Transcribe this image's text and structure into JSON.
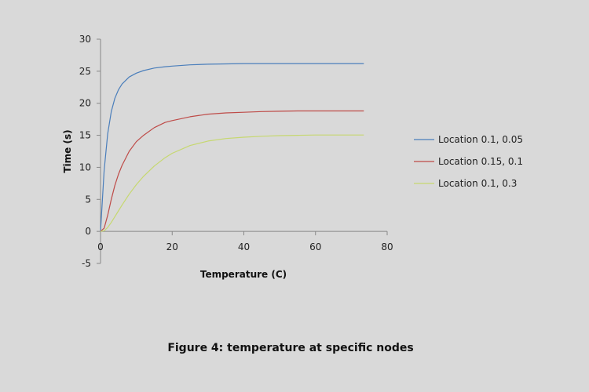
{
  "caption": "Figure 4: temperature at specific nodes",
  "chart_data": {
    "type": "line",
    "title": "",
    "xlabel": "Temperature (C)",
    "ylabel": "Time (s)",
    "xlim": [
      0,
      80
    ],
    "ylim": [
      -5,
      30
    ],
    "xticks": [
      0,
      20,
      40,
      60,
      80
    ],
    "yticks": [
      -5,
      0,
      5,
      10,
      15,
      20,
      25,
      30
    ],
    "grid": false,
    "legend_position": "right",
    "x": [
      0,
      1,
      2,
      3,
      4,
      5,
      6,
      8,
      10,
      12,
      15,
      18,
      20,
      25,
      30,
      35,
      40,
      45,
      50,
      55,
      60,
      65,
      70,
      73.5
    ],
    "series": [
      {
        "name": "Location 0.1, 0.05",
        "color": "#4a7ebb",
        "values": [
          0,
          9.5,
          15.2,
          18.7,
          20.8,
          22.1,
          23.0,
          24.1,
          24.7,
          25.1,
          25.5,
          25.7,
          25.8,
          26.0,
          26.1,
          26.15,
          26.2,
          26.2,
          26.2,
          26.2,
          26.2,
          26.2,
          26.2,
          26.2
        ]
      },
      {
        "name": "Location 0.15, 0.1",
        "color": "#be4b48",
        "values": [
          0,
          0.5,
          2.5,
          5.0,
          7.2,
          8.9,
          10.3,
          12.5,
          14.0,
          15.0,
          16.2,
          17.0,
          17.3,
          17.9,
          18.3,
          18.5,
          18.6,
          18.7,
          18.75,
          18.8,
          18.8,
          18.8,
          18.8,
          18.8
        ]
      },
      {
        "name": "Location 0.1, 0.3",
        "color": "#c6d870",
        "values": [
          0,
          0.1,
          0.6,
          1.4,
          2.3,
          3.2,
          4.1,
          5.8,
          7.3,
          8.6,
          10.2,
          11.5,
          12.2,
          13.4,
          14.1,
          14.5,
          14.7,
          14.85,
          14.95,
          15.0,
          15.05,
          15.05,
          15.05,
          15.05
        ]
      }
    ]
  }
}
